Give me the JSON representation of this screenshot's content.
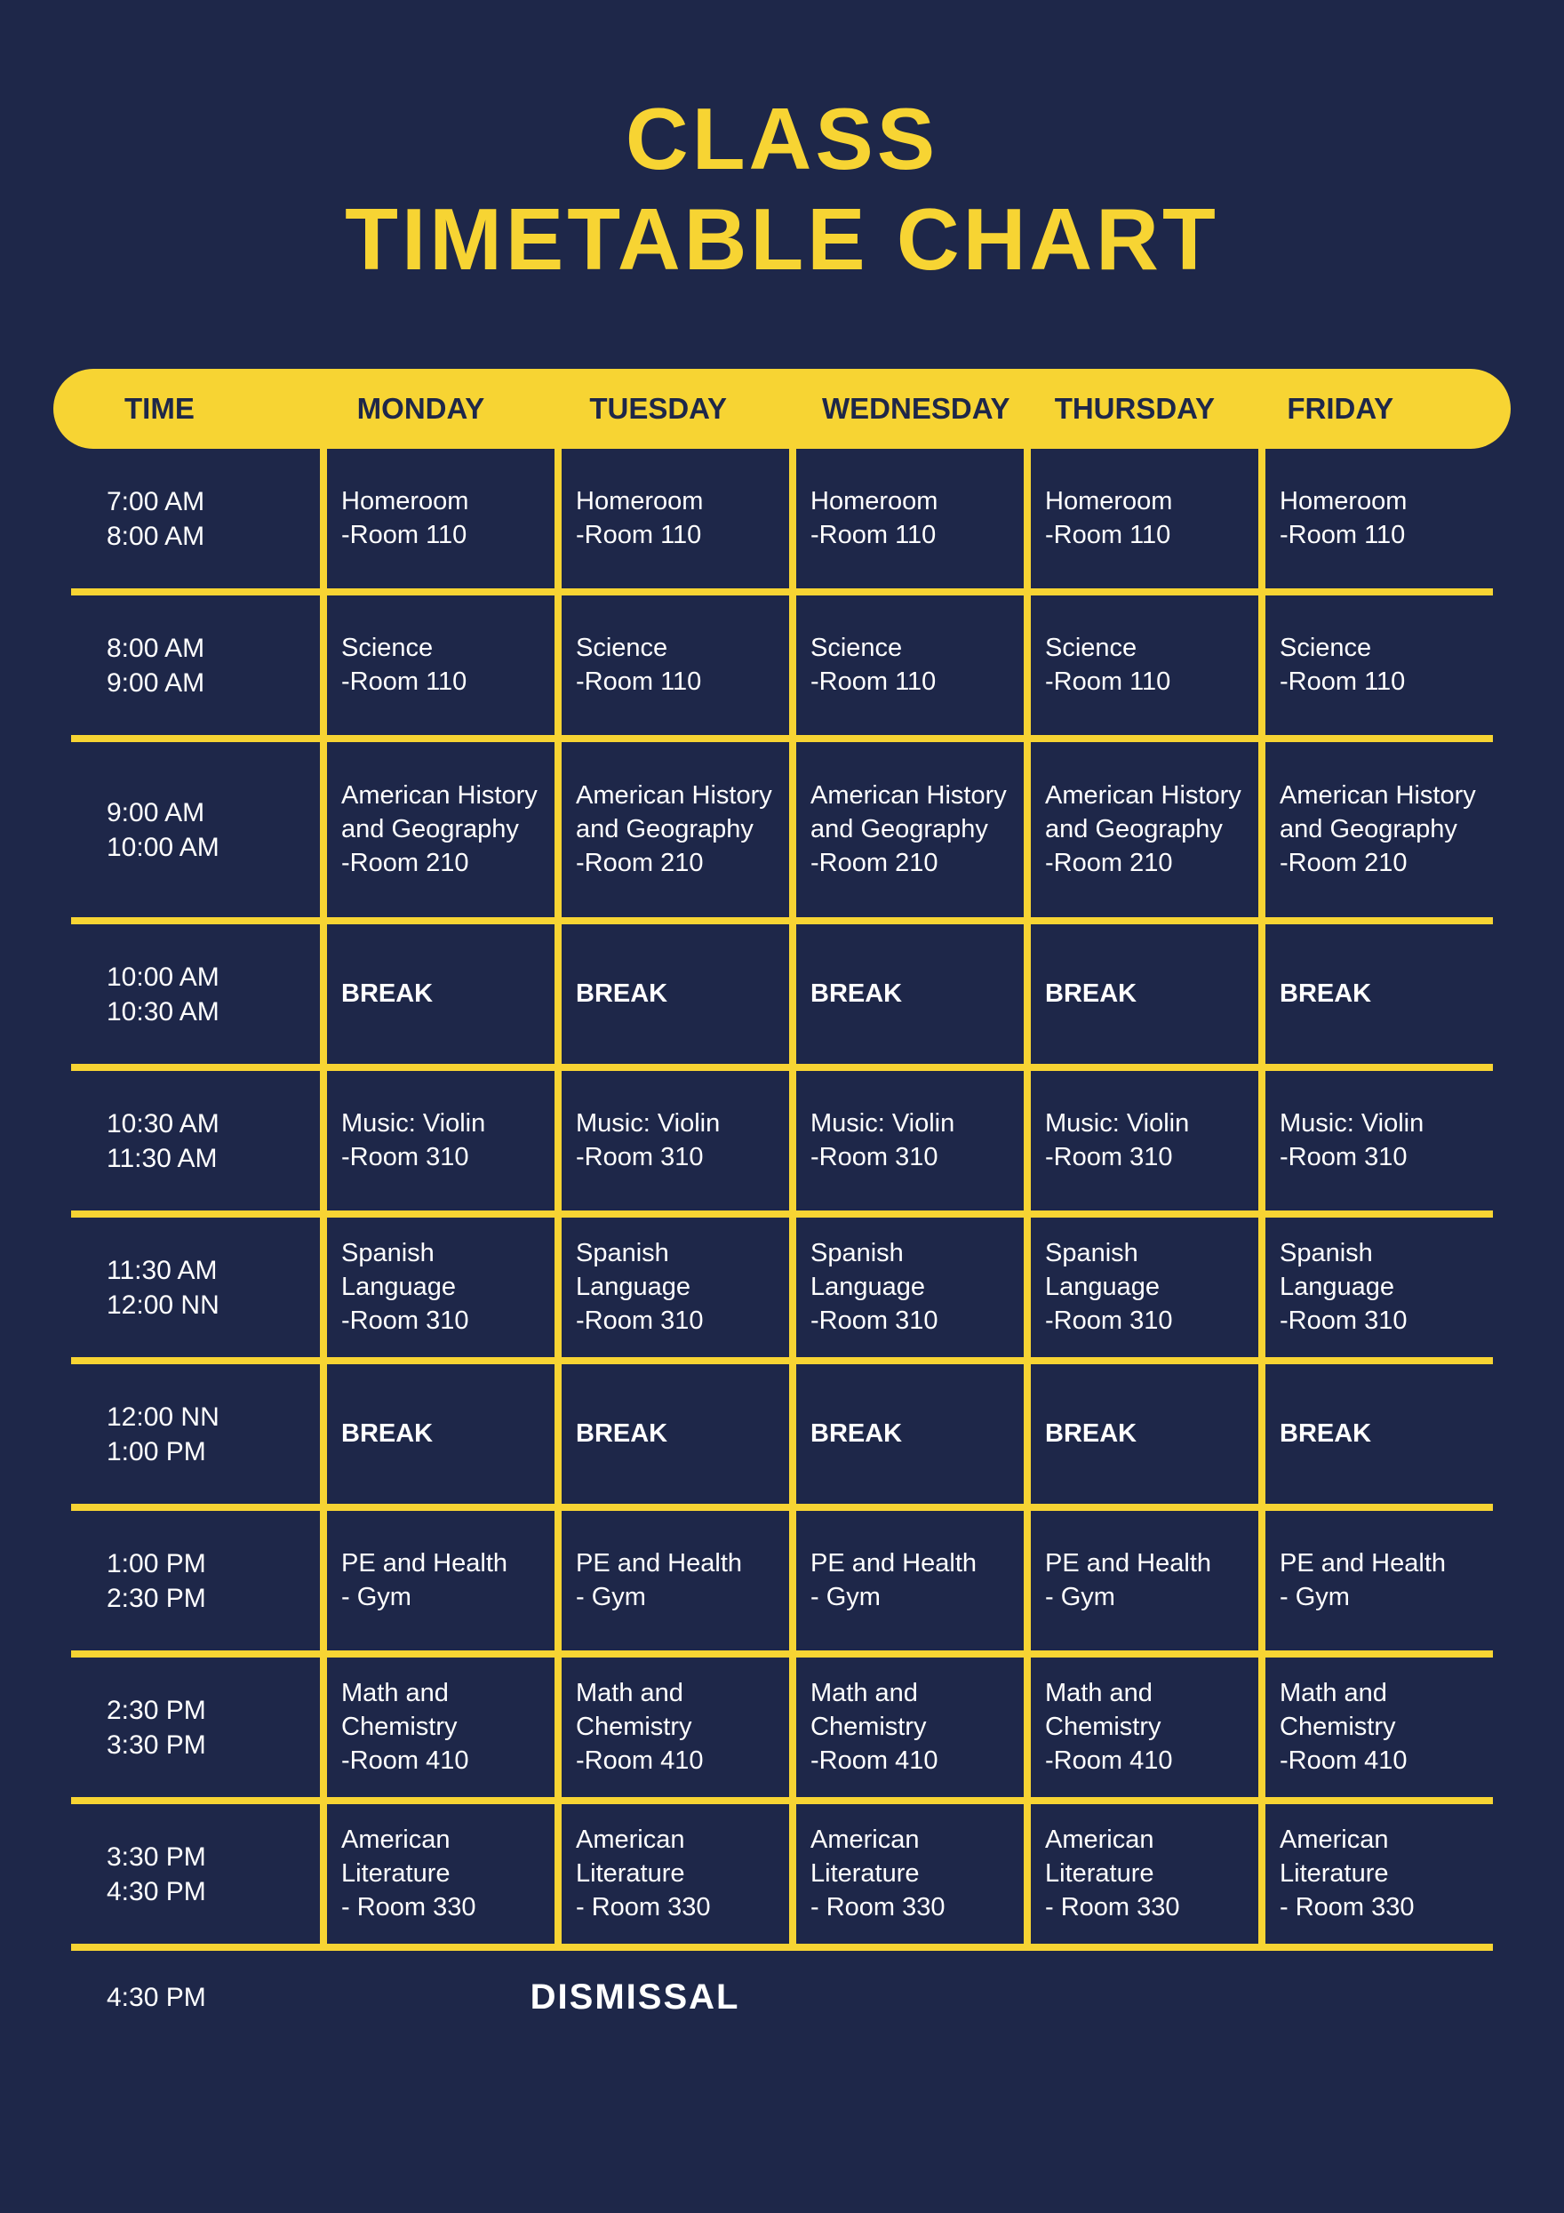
{
  "title_line1": "CLASS",
  "title_line2": "TIMETABLE CHART",
  "title_fontsize": 98,
  "title_color": "#f7d433",
  "background_color": "#1e2749",
  "accent_color": "#f7d433",
  "text_color": "#ffffff",
  "header_fontsize": 33,
  "cell_fontsize": 29,
  "dismissal_fontsize": 40,
  "columns": [
    "TIME",
    "MONDAY",
    "TUESDAY",
    "WEDNESDAY",
    "THURSDAY",
    "FRIDAY"
  ],
  "rows": [
    {
      "time_start": "7:00 AM",
      "time_end": "8:00 AM",
      "tall": false,
      "is_break": false,
      "cells": [
        {
          "subject": "Homeroom",
          "room": "-Room 110"
        },
        {
          "subject": "Homeroom",
          "room": "-Room 110"
        },
        {
          "subject": "Homeroom",
          "room": "-Room 110"
        },
        {
          "subject": "Homeroom",
          "room": "-Room 110"
        },
        {
          "subject": "Homeroom",
          "room": "-Room 110"
        }
      ]
    },
    {
      "time_start": "8:00 AM",
      "time_end": "9:00 AM",
      "tall": false,
      "is_break": false,
      "cells": [
        {
          "subject": "Science",
          "room": "-Room 110"
        },
        {
          "subject": "Science",
          "room": "-Room 110"
        },
        {
          "subject": "Science",
          "room": "-Room 110"
        },
        {
          "subject": "Science",
          "room": "-Room 110"
        },
        {
          "subject": "Science",
          "room": "-Room 110"
        }
      ]
    },
    {
      "time_start": "9:00 AM",
      "time_end": "10:00 AM",
      "tall": true,
      "is_break": false,
      "cells": [
        {
          "subject": "American History and Geography",
          "room": "-Room 210"
        },
        {
          "subject": "American History and Geography",
          "room": "-Room 210"
        },
        {
          "subject": "American History and Geography",
          "room": "-Room 210"
        },
        {
          "subject": "American History and Geography",
          "room": "-Room 210"
        },
        {
          "subject": "American History and Geography",
          "room": "-Room 210"
        }
      ]
    },
    {
      "time_start": "10:00 AM",
      "time_end": "10:30 AM",
      "tall": false,
      "is_break": true,
      "cells": [
        {
          "subject": "BREAK",
          "room": ""
        },
        {
          "subject": "BREAK",
          "room": ""
        },
        {
          "subject": "BREAK",
          "room": ""
        },
        {
          "subject": "BREAK",
          "room": ""
        },
        {
          "subject": "BREAK",
          "room": ""
        }
      ]
    },
    {
      "time_start": "10:30 AM",
      "time_end": "11:30 AM",
      "tall": false,
      "is_break": false,
      "cells": [
        {
          "subject": "Music: Violin",
          "room": "-Room 310"
        },
        {
          "subject": "Music: Violin",
          "room": "-Room 310"
        },
        {
          "subject": "Music: Violin",
          "room": "-Room 310"
        },
        {
          "subject": "Music: Violin",
          "room": "-Room 310"
        },
        {
          "subject": "Music: Violin",
          "room": "-Room 310"
        }
      ]
    },
    {
      "time_start": "11:30 AM",
      "time_end": "12:00 NN",
      "tall": false,
      "is_break": false,
      "cells": [
        {
          "subject": "Spanish Language",
          "room": "-Room 310"
        },
        {
          "subject": "Spanish Language",
          "room": "-Room 310"
        },
        {
          "subject": "Spanish Language",
          "room": "-Room 310"
        },
        {
          "subject": "Spanish Language",
          "room": "-Room 310"
        },
        {
          "subject": "Spanish Language",
          "room": "-Room 310"
        }
      ]
    },
    {
      "time_start": "12:00 NN",
      "time_end": "1:00 PM",
      "tall": false,
      "is_break": true,
      "cells": [
        {
          "subject": "BREAK",
          "room": ""
        },
        {
          "subject": "BREAK",
          "room": ""
        },
        {
          "subject": "BREAK",
          "room": ""
        },
        {
          "subject": "BREAK",
          "room": ""
        },
        {
          "subject": "BREAK",
          "room": ""
        }
      ]
    },
    {
      "time_start": "1:00 PM",
      "time_end": "2:30 PM",
      "tall": false,
      "is_break": false,
      "cells": [
        {
          "subject": "PE and Health",
          "room": "- Gym"
        },
        {
          "subject": "PE and Health",
          "room": "- Gym"
        },
        {
          "subject": "PE and Health",
          "room": "- Gym"
        },
        {
          "subject": "PE and Health",
          "room": "- Gym"
        },
        {
          "subject": "PE and Health",
          "room": "- Gym"
        }
      ]
    },
    {
      "time_start": "2:30 PM",
      "time_end": "3:30 PM",
      "tall": false,
      "is_break": false,
      "cells": [
        {
          "subject": "Math and Chemistry",
          "room": "-Room 410"
        },
        {
          "subject": "Math and Chemistry",
          "room": "-Room 410"
        },
        {
          "subject": "Math and Chemistry",
          "room": "-Room 410"
        },
        {
          "subject": "Math and Chemistry",
          "room": "-Room 410"
        },
        {
          "subject": "Math and Chemistry",
          "room": "-Room 410"
        }
      ]
    },
    {
      "time_start": "3:30 PM",
      "time_end": "4:30 PM",
      "tall": false,
      "is_break": false,
      "cells": [
        {
          "subject": "American Literature",
          "room": "- Room 330"
        },
        {
          "subject": "American Literature",
          "room": "- Room 330"
        },
        {
          "subject": "American Literature",
          "room": "- Room 330"
        },
        {
          "subject": "American Literature",
          "room": "- Room 330"
        },
        {
          "subject": "American Literature",
          "room": "- Room 330"
        }
      ]
    }
  ],
  "dismissal_time": "4:30 PM",
  "dismissal_label": "DISMISSAL"
}
